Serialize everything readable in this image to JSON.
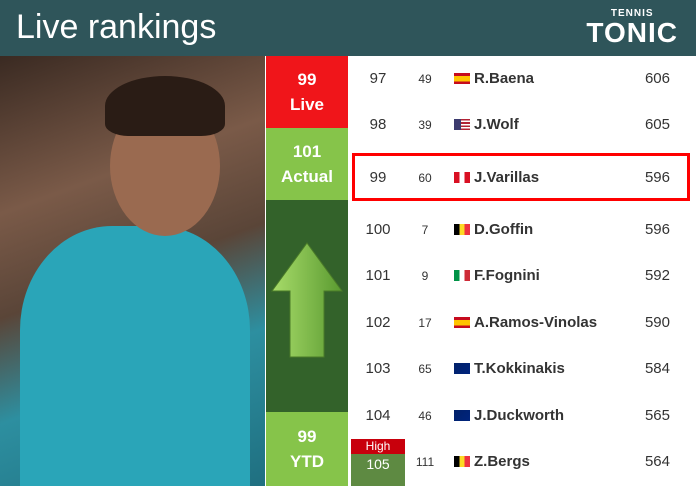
{
  "header": {
    "title": "Live rankings",
    "logo_top": "TENNIS",
    "logo_main": "TONIC"
  },
  "summary": {
    "live_rank": "99",
    "live_label": "Live",
    "actual_rank": "101",
    "actual_label": "Actual",
    "ytd_rank": "99",
    "ytd_label": "YTD",
    "trend": "up",
    "high_label": "High",
    "high_rank": "105"
  },
  "colors": {
    "header": "#2f555a",
    "live": "#f0151a",
    "actual": "#86c44a",
    "highlight": "#ff0000"
  },
  "rows": [
    {
      "rank": "97",
      "prev": "49",
      "flag": "spain",
      "name": "R.Baena",
      "points": "606"
    },
    {
      "rank": "98",
      "prev": "39",
      "flag": "usa",
      "name": "J.Wolf",
      "points": "605"
    },
    {
      "rank": "99",
      "prev": "60",
      "flag": "peru",
      "name": "J.Varillas",
      "points": "596",
      "highlighted": true
    },
    {
      "rank": "100",
      "prev": "7",
      "flag": "belgium",
      "name": "D.Goffin",
      "points": "596"
    },
    {
      "rank": "101",
      "prev": "9",
      "flag": "italy",
      "name": "F.Fognini",
      "points": "592"
    },
    {
      "rank": "102",
      "prev": "17",
      "flag": "spain",
      "name": "A.Ramos-Vinolas",
      "points": "590"
    },
    {
      "rank": "103",
      "prev": "65",
      "flag": "australia",
      "name": "T.Kokkinakis",
      "points": "584"
    },
    {
      "rank": "104",
      "prev": "46",
      "flag": "australia",
      "name": "J.Duckworth",
      "points": "565"
    },
    {
      "rank": "",
      "prev": "111",
      "flag": "belgium",
      "name": "Z.Bergs",
      "points": "564"
    }
  ]
}
